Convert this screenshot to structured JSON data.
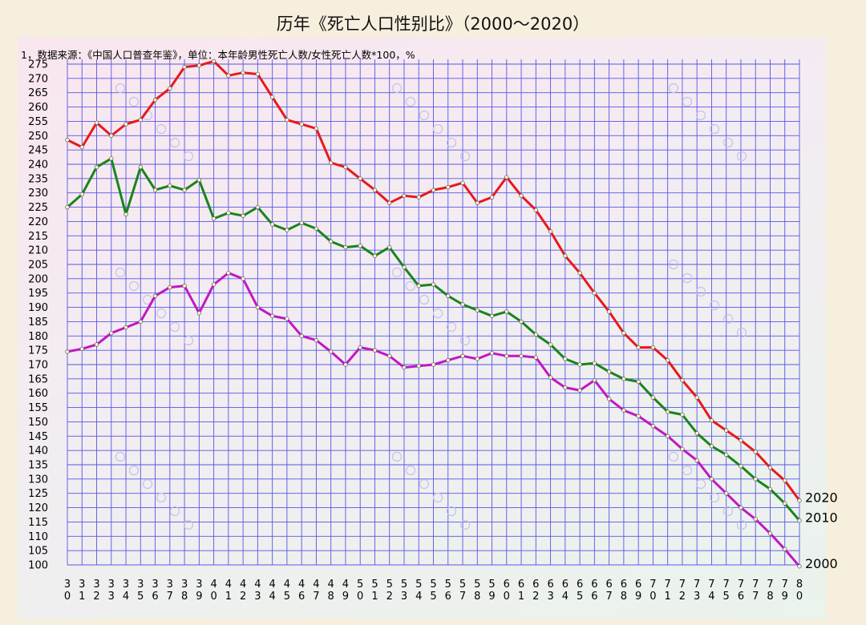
{
  "chart_data": {
    "type": "line",
    "title": "历年《死亡人口性别比》（2000～2020）",
    "note": "1，数据来源：《中国人口普查年鉴》，单位：本年龄男性死亡人数/女性死亡人数*100，%",
    "x": [
      "30",
      "31",
      "32",
      "33",
      "34",
      "35",
      "36",
      "37",
      "38",
      "39",
      "40",
      "41",
      "42",
      "43",
      "44",
      "45",
      "46",
      "47",
      "48",
      "49",
      "50",
      "51",
      "52",
      "53",
      "54",
      "55",
      "56",
      "57",
      "58",
      "59",
      "60",
      "61",
      "62",
      "63",
      "64",
      "65",
      "66",
      "67",
      "68",
      "69",
      "70",
      "71",
      "72",
      "73",
      "74",
      "75",
      "76",
      "77",
      "78",
      "79",
      "80"
    ],
    "ylim": [
      100,
      275
    ],
    "ytick_step": 5,
    "grid": true,
    "series": [
      {
        "name": "2020",
        "color": "#e8191b",
        "values": [
          248.5,
          246,
          254.5,
          250,
          254,
          255.5,
          262.5,
          266.5,
          274,
          274.5,
          276,
          271,
          272,
          271.5,
          263.5,
          255.5,
          254,
          252.5,
          240.5,
          239,
          235,
          231,
          226.5,
          229,
          228.5,
          231,
          232,
          233.5,
          226.5,
          228.5,
          235.5,
          229,
          224,
          216.5,
          208,
          202,
          195,
          188.5,
          181,
          176,
          176,
          171.5,
          164.5,
          158.5,
          150.5,
          147,
          143.5,
          139.5,
          134,
          129.5,
          122.5
        ]
      },
      {
        "name": "2010",
        "color": "#17851a",
        "values": [
          225,
          229.5,
          239,
          242,
          222.5,
          239,
          231,
          232.5,
          231,
          234.5,
          221,
          223,
          222,
          225,
          219,
          217,
          219.5,
          217.5,
          213,
          211,
          211.5,
          208,
          211,
          204,
          197.5,
          198,
          194,
          191,
          189,
          187,
          188.5,
          185,
          180.5,
          177,
          172,
          170,
          170.5,
          167.5,
          165,
          164,
          158.5,
          153.5,
          152.5,
          146,
          141.5,
          138.5,
          134.5,
          130,
          126.5,
          121.5,
          115.5
        ]
      },
      {
        "name": "2000",
        "color": "#c118c4",
        "values": [
          174.5,
          175.5,
          177,
          181,
          183,
          185,
          194,
          197,
          197.5,
          188,
          198,
          202,
          200,
          190,
          187,
          186,
          180,
          178.5,
          174.5,
          170,
          176,
          175,
          173,
          169,
          169.5,
          170,
          171.5,
          173,
          172,
          174,
          173,
          173,
          172.5,
          165.5,
          162,
          161,
          164.5,
          158,
          154,
          152,
          148.5,
          145,
          140.5,
          136.5,
          130,
          125,
          120,
          116,
          111,
          105.5,
          99.5
        ]
      }
    ]
  }
}
